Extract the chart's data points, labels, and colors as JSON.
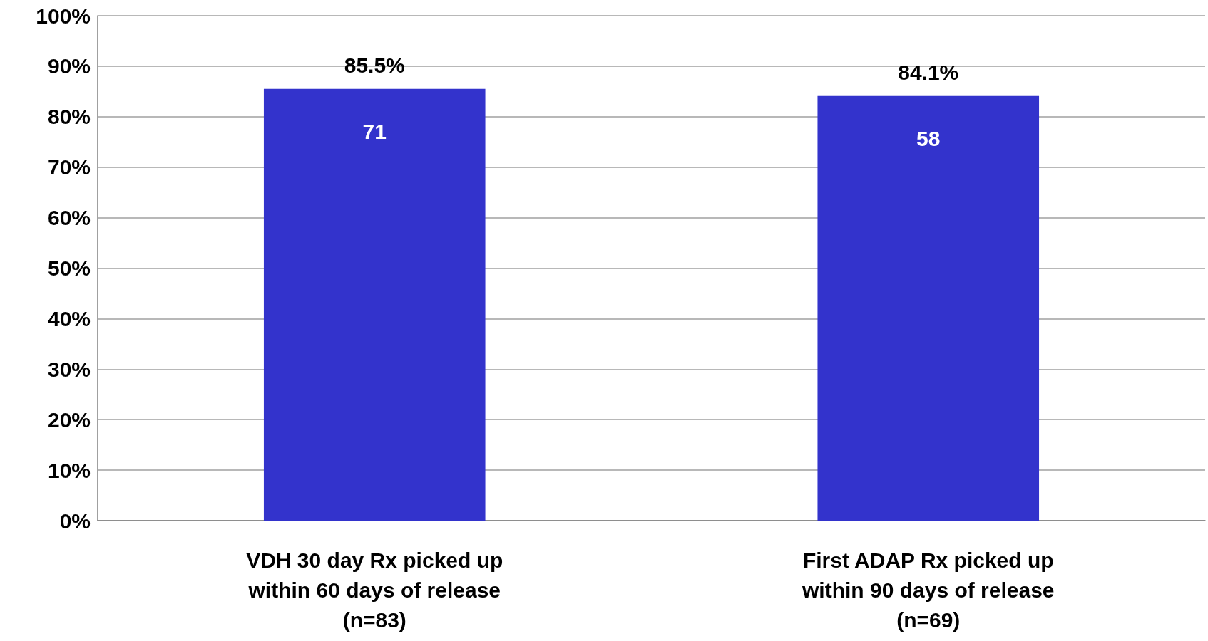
{
  "chart_data": {
    "type": "bar",
    "categories": [
      "VDH 30 day Rx picked up\nwithin 60 days of release\n(n=83)",
      "First ADAP Rx picked up\nwithin 90 days of release\n(n=69)"
    ],
    "values": [
      85.5,
      84.1
    ],
    "color": "#3333cc",
    "value_labels": [
      "85.5%",
      "84.1%"
    ],
    "annotations": [
      "71",
      "58"
    ],
    "ylim": [
      0,
      100
    ],
    "yticks": [
      {
        "value": 0,
        "label": "0%"
      },
      {
        "value": 10,
        "label": "10%"
      },
      {
        "value": 20,
        "label": "20%"
      },
      {
        "value": 30,
        "label": "30%"
      },
      {
        "value": 40,
        "label": "40%"
      },
      {
        "value": 50,
        "label": "50%"
      },
      {
        "value": 60,
        "label": "60%"
      },
      {
        "value": 70,
        "label": "70%"
      },
      {
        "value": 80,
        "label": "80%"
      },
      {
        "value": 90,
        "label": "90%"
      },
      {
        "value": 100,
        "label": "100%"
      }
    ],
    "grid": "y"
  }
}
